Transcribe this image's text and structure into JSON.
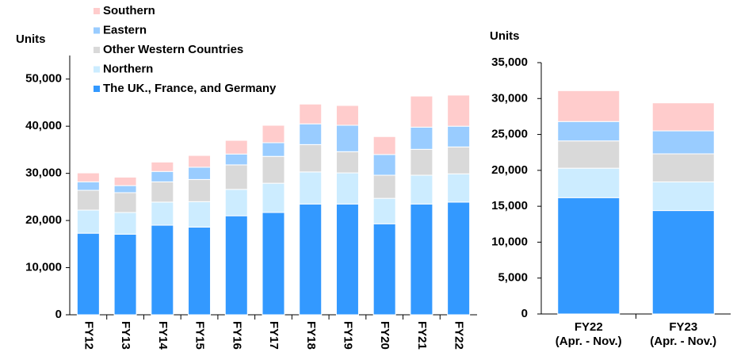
{
  "chart_data": [
    {
      "type": "stacked_bar",
      "y_label": "Units",
      "categories": [
        "FY12",
        "FY13",
        "FY14",
        "FY15",
        "FY16",
        "FY17",
        "FY18",
        "FY19",
        "FY20",
        "FY21",
        "FY22"
      ],
      "series": [
        {
          "name": "The UK., France, and Germany",
          "color": "#3399ff",
          "values": [
            17300,
            17100,
            19000,
            18600,
            21000,
            21700,
            23500,
            23500,
            19300,
            23500,
            23900
          ]
        },
        {
          "name": "Northern",
          "color": "#ccecff",
          "values": [
            4900,
            4600,
            4900,
            5400,
            5600,
            6200,
            6800,
            6600,
            5400,
            6100,
            6000
          ]
        },
        {
          "name": "Other Western Countries",
          "color": "#d9d9d9",
          "values": [
            4200,
            4200,
            4300,
            4700,
            5200,
            5700,
            5800,
            4500,
            4900,
            5500,
            5700
          ]
        },
        {
          "name": "Eastern",
          "color": "#99ccff",
          "values": [
            1800,
            1500,
            2200,
            2600,
            2300,
            2900,
            4400,
            5600,
            4400,
            4700,
            4400
          ]
        },
        {
          "name": "Southern",
          "color": "#ffcccc",
          "values": [
            1900,
            1800,
            2000,
            2500,
            2900,
            3700,
            4200,
            4200,
            3800,
            6600,
            6600
          ]
        }
      ],
      "ylim": [
        0,
        55000
      ],
      "yticks": [
        0,
        {
          "value": 10000,
          "label": "10,000"
        },
        {
          "value": 20000,
          "label": "20,000"
        },
        {
          "value": 30000,
          "label": "30,000"
        },
        {
          "value": 40000,
          "label": "40,000"
        },
        {
          "value": 50000,
          "label": "50,000"
        }
      ],
      "legend": "upper center",
      "grid": false
    },
    {
      "type": "stacked_bar",
      "y_label": "Units",
      "categories": [
        "FY22\n(Apr. - Nov.)",
        "FY23\n(Apr. - Nov.)"
      ],
      "series": [
        {
          "color": "#3399ff",
          "values": [
            16200,
            14400
          ]
        },
        {
          "color": "#ccecff",
          "values": [
            4100,
            4000
          ]
        },
        {
          "color": "#d9d9d9",
          "values": [
            3800,
            3900
          ]
        },
        {
          "color": "#99ccff",
          "values": [
            2700,
            3200
          ]
        },
        {
          "color": "#ffcccc",
          "values": [
            4300,
            3900
          ]
        }
      ],
      "ylim": [
        0,
        35000
      ],
      "yticks": [
        0,
        {
          "value": 5000,
          "label": "5,000"
        },
        {
          "value": 10000,
          "label": "10,000"
        },
        {
          "value": 15000,
          "label": "15,000"
        },
        {
          "value": 20000,
          "label": "20,000"
        },
        {
          "value": 25000,
          "label": "25,000"
        },
        {
          "value": 30000,
          "label": "30,000"
        },
        {
          "value": 35000,
          "label": "35,000"
        }
      ],
      "grid": false
    }
  ]
}
